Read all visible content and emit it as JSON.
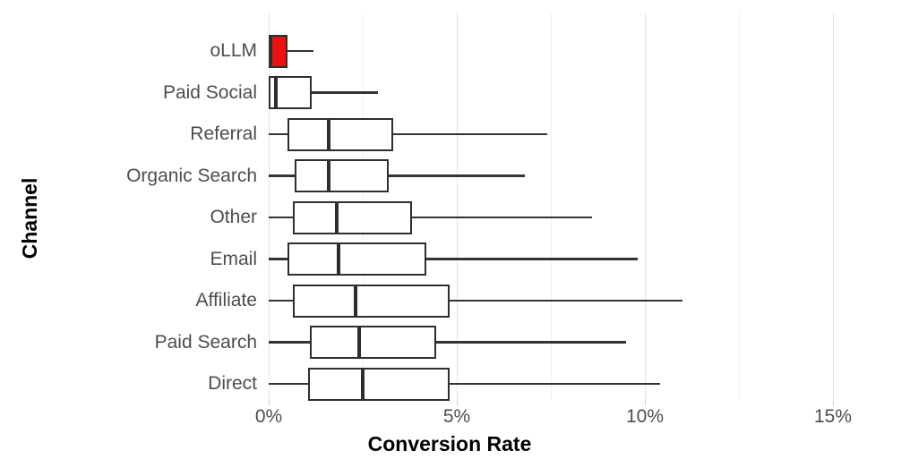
{
  "chart_data": {
    "type": "boxplot",
    "orientation": "horizontal",
    "title": "",
    "xlabel": "Conversion Rate",
    "ylabel": "Channel",
    "x_unit": "percent",
    "xlim": [
      0,
      16.5
    ],
    "grid": "vertical-only",
    "legend": "none",
    "x_ticks": [
      {
        "value": 0,
        "label": "0%"
      },
      {
        "value": 5,
        "label": "5%"
      },
      {
        "value": 10,
        "label": "10%"
      },
      {
        "value": 15,
        "label": "15%"
      }
    ],
    "minor_gridlines": [
      2.5,
      7.5,
      12.5
    ],
    "categories": [
      "oLLM",
      "Paid Social",
      "Referral",
      "Organic Search",
      "Other",
      "Email",
      "Affiliate",
      "Paid Search",
      "Direct"
    ],
    "boxes": [
      {
        "channel": "oLLM",
        "min": 0,
        "q1": 0,
        "median": 0.05,
        "q3": 0.5,
        "max": 1.2,
        "highlighted": true
      },
      {
        "channel": "Paid Social",
        "min": 0,
        "q1": 0,
        "median": 0.2,
        "q3": 1.15,
        "max": 2.9,
        "highlighted": false
      },
      {
        "channel": "Referral",
        "min": 0,
        "q1": 0.5,
        "median": 1.6,
        "q3": 3.3,
        "max": 7.4,
        "highlighted": false
      },
      {
        "channel": "Organic Search",
        "min": 0,
        "q1": 0.7,
        "median": 1.6,
        "q3": 3.2,
        "max": 6.8,
        "highlighted": false
      },
      {
        "channel": "Other",
        "min": 0,
        "q1": 0.65,
        "median": 1.8,
        "q3": 3.8,
        "max": 8.6,
        "highlighted": false
      },
      {
        "channel": "Email",
        "min": 0,
        "q1": 0.5,
        "median": 1.85,
        "q3": 4.2,
        "max": 9.8,
        "highlighted": false
      },
      {
        "channel": "Affiliate",
        "min": 0,
        "q1": 0.65,
        "median": 2.3,
        "q3": 4.8,
        "max": 11.0,
        "highlighted": false
      },
      {
        "channel": "Paid Search",
        "min": 0,
        "q1": 1.1,
        "median": 2.4,
        "q3": 4.45,
        "max": 9.5,
        "highlighted": false
      },
      {
        "channel": "Direct",
        "min": 0,
        "q1": 1.05,
        "median": 2.5,
        "q3": 4.8,
        "max": 10.4,
        "highlighted": false
      }
    ],
    "colors": {
      "background": "#ffffff",
      "box_border": "#2e2e2e",
      "box_fill": "#ffffff",
      "highlight_fill": "#ee1111",
      "whisker": "#333333",
      "median": "#2e2e2e",
      "gridline_major": "#e2e2e2",
      "gridline_minor": "#efefef",
      "tick": "#d0d0d0",
      "axis_text": "#4d4d4d",
      "axis_title_text": "#000000"
    }
  }
}
